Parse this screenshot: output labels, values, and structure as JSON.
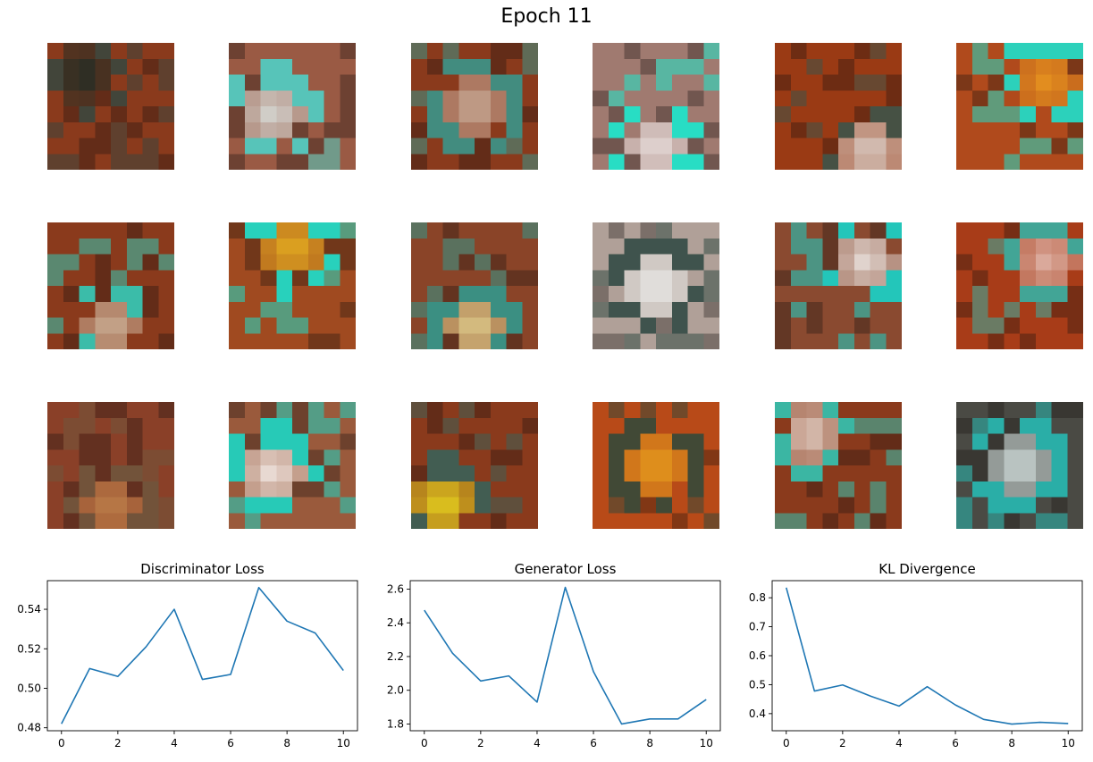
{
  "figure": {
    "title": "Epoch 11"
  },
  "image_grid": {
    "rows": 3,
    "cols": 6,
    "tiles": [
      {
        "base": "#8a3a1c",
        "accent": "#2a4a44",
        "glow": "#0a2a28",
        "glow_pos": "top-left"
      },
      {
        "base": "#9a5a44",
        "accent": "#40e8e0",
        "glow": "#e0f0f0",
        "glow_pos": "center-left"
      },
      {
        "base": "#8a3a1c",
        "accent": "#2aa8a0",
        "glow": "#d8c8b8",
        "glow_pos": "center"
      },
      {
        "base": "#a07a70",
        "accent": "#00ffe0",
        "glow": "#f4f0f0",
        "glow_pos": "bottom-center"
      },
      {
        "base": "#9a3a14",
        "accent": "#2a5a54",
        "glow": "#e8f0f0",
        "glow_pos": "bottom-right"
      },
      {
        "base": "#b04a1c",
        "accent": "#00fff0",
        "glow": "#f0a020",
        "glow_pos": "top-right"
      },
      {
        "base": "#8a3a1c",
        "accent": "#20e8d8",
        "glow": "#d8c8b0",
        "glow_pos": "bottom-center"
      },
      {
        "base": "#a04a20",
        "accent": "#00fff0",
        "glow": "#f0c020",
        "glow_pos": "top-center"
      },
      {
        "base": "#8a4428",
        "accent": "#20a8a0",
        "glow": "#f0e8a0",
        "glow_pos": "bottom-center"
      },
      {
        "base": "#b0a098",
        "accent": "#1a3a34",
        "glow": "#f8fafa",
        "glow_pos": "center"
      },
      {
        "base": "#8a4a30",
        "accent": "#00f0e8",
        "glow": "#f8fafa",
        "glow_pos": "top-right"
      },
      {
        "base": "#a83c18",
        "accent": "#20c8c0",
        "glow": "#e8c8c0",
        "glow_pos": "top-right"
      },
      {
        "base": "#8a4028",
        "accent": "#6a5a40",
        "glow": "#c88a50",
        "glow_pos": "bottom-center"
      },
      {
        "base": "#9a5a3c",
        "accent": "#00f0e0",
        "glow": "#ffffff",
        "glow_pos": "center-left"
      },
      {
        "base": "#8a3a1c",
        "accent": "#2a6a64",
        "glow": "#f8f020",
        "glow_pos": "bottom-left"
      },
      {
        "base": "#b84a18",
        "accent": "#1a4a40",
        "glow": "#f0b020",
        "glow_pos": "center"
      },
      {
        "base": "#8a3a1c",
        "accent": "#20e0d0",
        "glow": "#f0e8e0",
        "glow_pos": "top-left"
      },
      {
        "base": "#4a4a44",
        "accent": "#20d0c8",
        "glow": "#f0ffff",
        "glow_pos": "center"
      }
    ]
  },
  "chart_data": [
    {
      "type": "line",
      "title": "Discriminator Loss",
      "x": [
        0,
        1,
        2,
        3,
        4,
        5,
        6,
        7,
        8,
        9,
        10
      ],
      "y": [
        0.482,
        0.51,
        0.506,
        0.521,
        0.54,
        0.5045,
        0.507,
        0.551,
        0.534,
        0.528,
        0.509
      ],
      "xlim": [
        -0.5,
        10.5
      ],
      "ylim": [
        0.4785,
        0.5545
      ],
      "xticks": [
        0,
        2,
        4,
        6,
        8,
        10
      ],
      "xtick_labels": [
        "0",
        "2",
        "4",
        "6",
        "8",
        "10"
      ],
      "yticks": [
        0.48,
        0.5,
        0.52,
        0.54
      ],
      "ytick_labels": [
        "0.48",
        "0.50",
        "0.52",
        "0.54"
      ],
      "color": "#1f77b4",
      "grid": false
    },
    {
      "type": "line",
      "title": "Generator Loss",
      "x": [
        0,
        1,
        2,
        3,
        4,
        5,
        6,
        7,
        8,
        9,
        10
      ],
      "y": [
        2.475,
        2.22,
        2.055,
        2.085,
        1.93,
        2.61,
        2.11,
        1.8,
        1.83,
        1.83,
        1.945
      ],
      "xlim": [
        -0.5,
        10.5
      ],
      "ylim": [
        1.76,
        2.65
      ],
      "xticks": [
        0,
        2,
        4,
        6,
        8,
        10
      ],
      "xtick_labels": [
        "0",
        "2",
        "4",
        "6",
        "8",
        "10"
      ],
      "yticks": [
        1.8,
        2.0,
        2.2,
        2.4,
        2.6
      ],
      "ytick_labels": [
        "1.8",
        "2.0",
        "2.2",
        "2.4",
        "2.6"
      ],
      "color": "#1f77b4",
      "grid": false
    },
    {
      "type": "line",
      "title": "KL Divergence",
      "x": [
        0,
        1,
        2,
        3,
        4,
        5,
        6,
        7,
        8,
        9,
        10
      ],
      "y": [
        0.835,
        0.478,
        0.499,
        0.46,
        0.426,
        0.493,
        0.43,
        0.38,
        0.364,
        0.37,
        0.366
      ],
      "xlim": [
        -0.5,
        10.5
      ],
      "ylim": [
        0.341,
        0.859
      ],
      "xticks": [
        0,
        2,
        4,
        6,
        8,
        10
      ],
      "xtick_labels": [
        "0",
        "2",
        "4",
        "6",
        "8",
        "10"
      ],
      "yticks": [
        0.4,
        0.5,
        0.6,
        0.7,
        0.8
      ],
      "ytick_labels": [
        "0.4",
        "0.5",
        "0.6",
        "0.7",
        "0.8"
      ],
      "color": "#1f77b4",
      "grid": false
    }
  ]
}
